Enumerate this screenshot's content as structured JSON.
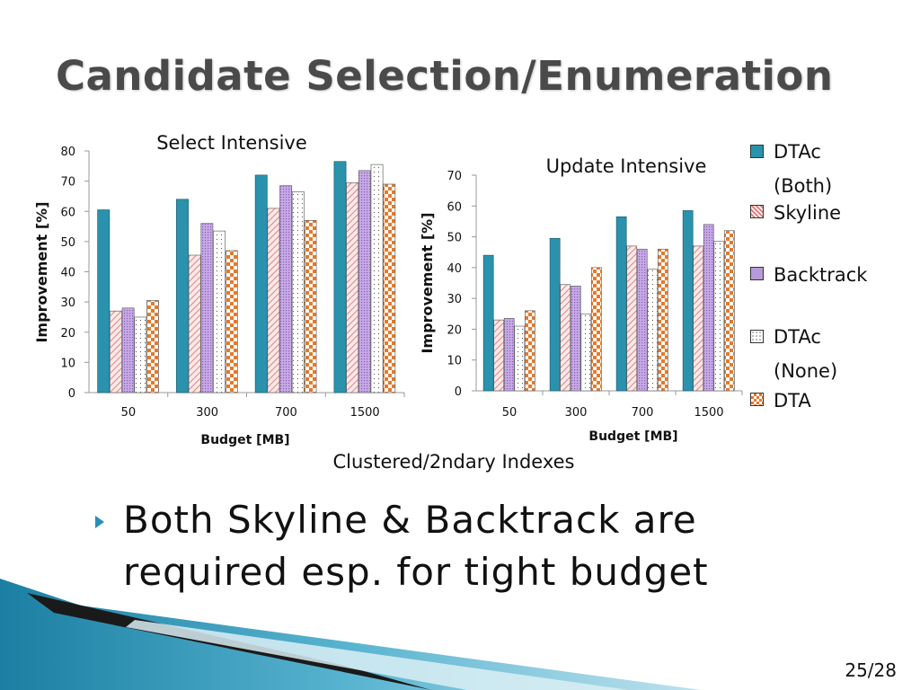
{
  "slide": {
    "title": "Candidate Selection/Enumeration",
    "bullet": "Both Skyline & Backtrack are required esp. for tight budget",
    "page_number": "25/28",
    "caption": "Clustered/2ndary Indexes"
  },
  "legend": [
    {
      "label": "DTAc (Both)",
      "pattern": "solid-teal"
    },
    {
      "label": "Skyline",
      "pattern": "diagonal-pink"
    },
    {
      "label": "Backtrack",
      "pattern": "dotted-purple"
    },
    {
      "label": "DTAc (None)",
      "pattern": "dots-white"
    },
    {
      "label": "DTA",
      "pattern": "checker-orange"
    }
  ],
  "colors": {
    "teal": "#2a92ac",
    "pink": "#e8a0a0",
    "purple": "#b79ad8",
    "orange": "#e57a2c",
    "axis": "#888888"
  },
  "chart_data": [
    {
      "type": "bar",
      "title": "Select Intensive",
      "xlabel": "Budget [MB]",
      "ylabel": "Improvement [%]",
      "categories": [
        "50",
        "300",
        "700",
        "1500"
      ],
      "ylim": [
        0,
        80
      ],
      "yticks": [
        0,
        10,
        20,
        30,
        40,
        50,
        60,
        70,
        80
      ],
      "series": [
        {
          "name": "DTAc (Both)",
          "values": [
            60.5,
            64,
            72,
            76.5
          ]
        },
        {
          "name": "Skyline",
          "values": [
            27,
            45.5,
            61,
            69.5
          ]
        },
        {
          "name": "Backtrack",
          "values": [
            28,
            56,
            68.5,
            73.5
          ]
        },
        {
          "name": "DTAc (None)",
          "values": [
            25,
            53.5,
            66.5,
            75.5
          ]
        },
        {
          "name": "DTA",
          "values": [
            30.5,
            47,
            57,
            69
          ]
        }
      ]
    },
    {
      "type": "bar",
      "title": "Update Intensive",
      "xlabel": "Budget [MB]",
      "ylabel": "Improvement [%]",
      "categories": [
        "50",
        "300",
        "700",
        "1500"
      ],
      "ylim": [
        0,
        70
      ],
      "yticks": [
        0,
        10,
        20,
        30,
        40,
        50,
        60,
        70
      ],
      "series": [
        {
          "name": "DTAc (Both)",
          "values": [
            44,
            49.5,
            56.5,
            58.5
          ]
        },
        {
          "name": "Skyline",
          "values": [
            23,
            34.5,
            47,
            47
          ]
        },
        {
          "name": "Backtrack",
          "values": [
            23.5,
            34,
            46,
            54
          ]
        },
        {
          "name": "DTAc (None)",
          "values": [
            21,
            25,
            39.5,
            48.5
          ]
        },
        {
          "name": "DTA",
          "values": [
            26,
            40,
            46,
            52
          ]
        }
      ]
    }
  ]
}
